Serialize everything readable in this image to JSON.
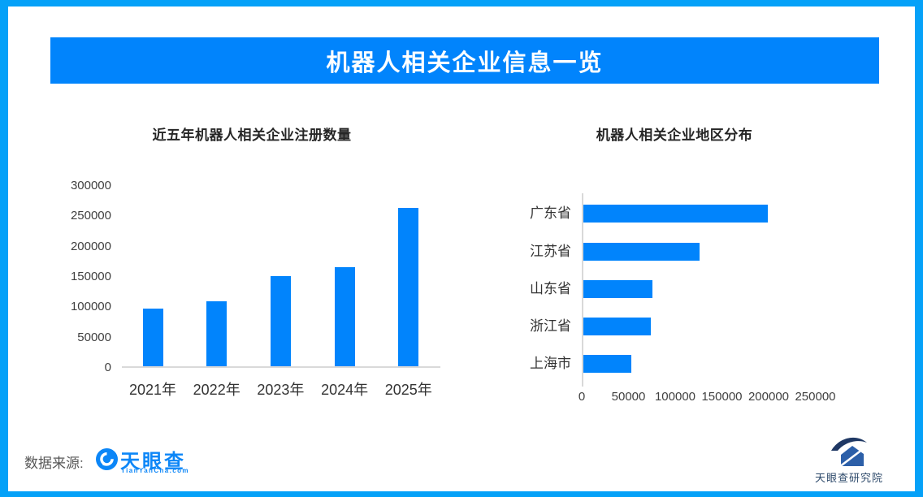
{
  "header": {
    "title": "机器人相关企业信息一览"
  },
  "chart_data": [
    {
      "type": "bar",
      "orientation": "vertical",
      "title": "近五年机器人相关企业注册数量",
      "categories": [
        "2021年",
        "2022年",
        "2023年",
        "2024年",
        "2025年"
      ],
      "values": [
        95000,
        107000,
        148000,
        164000,
        261000
      ],
      "ylabel": "",
      "xlabel": "",
      "ylim": [
        0,
        300000
      ],
      "ytick_step": 50000,
      "grid": false,
      "legend_position": "none",
      "bar_color": "#0184FC"
    },
    {
      "type": "bar",
      "orientation": "horizontal",
      "title": "机器人相关企业地区分布",
      "categories": [
        "广东省",
        "江苏省",
        "山东省",
        "浙江省",
        "上海市"
      ],
      "values": [
        197000,
        124000,
        74000,
        72000,
        51000
      ],
      "ylabel": "",
      "xlabel": "",
      "xlim": [
        0,
        250000
      ],
      "xtick_step": 50000,
      "grid": false,
      "legend_position": "none",
      "bar_color": "#0184FC"
    }
  ],
  "footer": {
    "source_label": "数据来源:",
    "tianyancha_logo": {
      "text": "天眼查",
      "subtext": "TianYanCha.com"
    },
    "research_logo": {
      "text": "天眼查研究院"
    }
  },
  "colors": {
    "frame_border": "#05A1F8",
    "banner": "#0184FC",
    "bar": "#0184FC",
    "axis_line": "#D9D9D9"
  }
}
